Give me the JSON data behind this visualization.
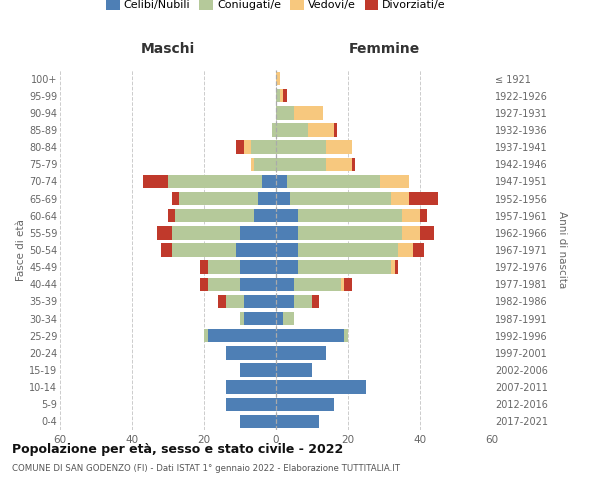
{
  "age_groups": [
    "0-4",
    "5-9",
    "10-14",
    "15-19",
    "20-24",
    "25-29",
    "30-34",
    "35-39",
    "40-44",
    "45-49",
    "50-54",
    "55-59",
    "60-64",
    "65-69",
    "70-74",
    "75-79",
    "80-84",
    "85-89",
    "90-94",
    "95-99",
    "100+"
  ],
  "birth_years": [
    "2017-2021",
    "2012-2016",
    "2007-2011",
    "2002-2006",
    "1997-2001",
    "1992-1996",
    "1987-1991",
    "1982-1986",
    "1977-1981",
    "1972-1976",
    "1967-1971",
    "1962-1966",
    "1957-1961",
    "1952-1956",
    "1947-1951",
    "1942-1946",
    "1937-1941",
    "1932-1936",
    "1927-1931",
    "1922-1926",
    "≤ 1921"
  ],
  "males": {
    "celibi": [
      10,
      14,
      14,
      10,
      14,
      19,
      9,
      9,
      10,
      10,
      11,
      10,
      6,
      5,
      4,
      0,
      0,
      0,
      0,
      0,
      0
    ],
    "coniugati": [
      0,
      0,
      0,
      0,
      0,
      1,
      1,
      5,
      9,
      9,
      18,
      19,
      22,
      22,
      26,
      6,
      7,
      1,
      0,
      0,
      0
    ],
    "vedovi": [
      0,
      0,
      0,
      0,
      0,
      0,
      0,
      0,
      0,
      0,
      0,
      0,
      0,
      0,
      0,
      1,
      2,
      0,
      0,
      0,
      0
    ],
    "divorziati": [
      0,
      0,
      0,
      0,
      0,
      0,
      0,
      2,
      2,
      2,
      3,
      4,
      2,
      2,
      7,
      0,
      2,
      0,
      0,
      0,
      0
    ]
  },
  "females": {
    "nubili": [
      12,
      16,
      25,
      10,
      14,
      19,
      2,
      5,
      5,
      6,
      6,
      6,
      6,
      4,
      3,
      0,
      0,
      0,
      0,
      0,
      0
    ],
    "coniugate": [
      0,
      0,
      0,
      0,
      0,
      1,
      3,
      5,
      13,
      26,
      28,
      29,
      29,
      28,
      26,
      14,
      14,
      9,
      5,
      1,
      0
    ],
    "vedove": [
      0,
      0,
      0,
      0,
      0,
      0,
      0,
      0,
      1,
      1,
      4,
      5,
      5,
      5,
      8,
      7,
      7,
      7,
      8,
      1,
      1
    ],
    "divorziate": [
      0,
      0,
      0,
      0,
      0,
      0,
      0,
      2,
      2,
      1,
      3,
      4,
      2,
      8,
      0,
      1,
      0,
      1,
      0,
      1,
      0
    ]
  },
  "colors": {
    "celibi_nubili": "#4e7fb5",
    "coniugati": "#b5c99a",
    "vedovi": "#f7c87e",
    "divorziati": "#c0392b"
  },
  "xlim": 60,
  "title": "Popolazione per età, sesso e stato civile - 2022",
  "subtitle": "COMUNE DI SAN GODENZO (FI) - Dati ISTAT 1° gennaio 2022 - Elaborazione TUTTITALIA.IT",
  "xlabel_left": "Maschi",
  "xlabel_right": "Femmine",
  "ylabel_left": "Fasce di età",
  "ylabel_right": "Anni di nascita",
  "legend_labels": [
    "Celibi/Nubili",
    "Coniugati/e",
    "Vedovi/e",
    "Divorziati/e"
  ],
  "bg_color": "#ffffff",
  "grid_color": "#cccccc"
}
